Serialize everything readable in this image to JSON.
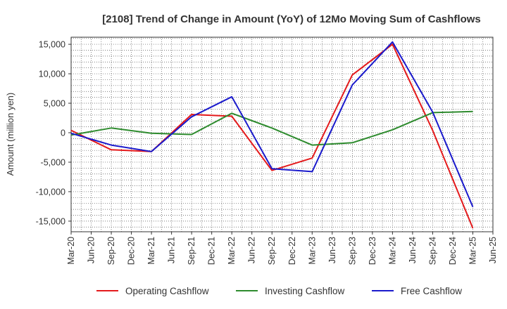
{
  "chart_data": {
    "type": "line",
    "title": "[2108]  Trend of Change in Amount (YoY) of 12Mo Moving Sum of Cashflows",
    "xlabel": "",
    "ylabel": "Amount (million yen)",
    "ylim": [
      -16800,
      16200
    ],
    "yticks": [
      15000,
      10000,
      5000,
      0,
      -5000,
      -10000,
      -15000
    ],
    "ytick_labels": [
      "15,000",
      "10,000",
      "5,000",
      "0",
      "-5,000",
      "-10,000",
      "-15,000"
    ],
    "categories": [
      "Mar-20",
      "Jun-20",
      "Sep-20",
      "Dec-20",
      "Mar-21",
      "Jun-21",
      "Sep-21",
      "Dec-21",
      "Mar-22",
      "Jun-22",
      "Sep-22",
      "Dec-22",
      "Mar-23",
      "Jun-23",
      "Sep-23",
      "Dec-23",
      "Mar-24",
      "Jun-24",
      "Sep-24",
      "Dec-24",
      "Mar-25",
      "Jun-25"
    ],
    "grid": true,
    "legend_position": "bottom",
    "series": [
      {
        "name": "Operating Cashflow",
        "color": "#e41a1c",
        "points": [
          [
            0,
            400
          ],
          [
            2,
            -2900
          ],
          [
            4,
            -3200
          ],
          [
            6,
            3100
          ],
          [
            8,
            2800
          ],
          [
            10,
            -6400
          ],
          [
            12,
            -4300
          ],
          [
            14,
            9800
          ],
          [
            16,
            15000
          ],
          [
            18,
            400
          ],
          [
            20,
            -16200
          ]
        ]
      },
      {
        "name": "Investing Cashflow",
        "color": "#2e8b2e",
        "points": [
          [
            0,
            -400
          ],
          [
            2,
            800
          ],
          [
            4,
            -100
          ],
          [
            6,
            -300
          ],
          [
            8,
            3300
          ],
          [
            10,
            800
          ],
          [
            12,
            -2100
          ],
          [
            14,
            -1700
          ],
          [
            16,
            500
          ],
          [
            18,
            3400
          ],
          [
            20,
            3600
          ]
        ]
      },
      {
        "name": "Free Cashflow",
        "color": "#1a1acc",
        "points": [
          [
            0,
            -100
          ],
          [
            2,
            -2100
          ],
          [
            4,
            -3200
          ],
          [
            6,
            2700
          ],
          [
            8,
            6100
          ],
          [
            10,
            -6100
          ],
          [
            12,
            -6600
          ],
          [
            14,
            8100
          ],
          [
            16,
            15400
          ],
          [
            18,
            3500
          ],
          [
            20,
            -12600
          ]
        ]
      }
    ]
  }
}
